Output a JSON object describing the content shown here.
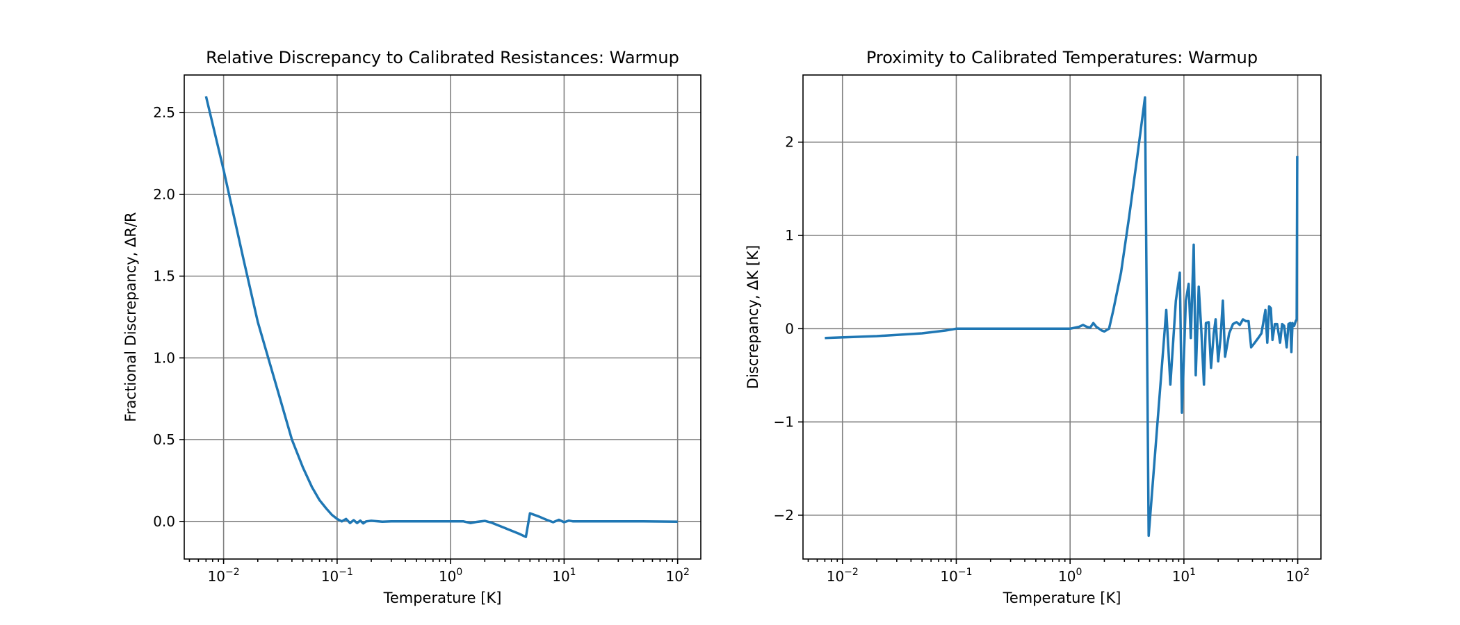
{
  "chart_data": [
    {
      "type": "line",
      "title": "Relative Discrepancy to Calibrated Resistances: Warmup",
      "xlabel": "Temperature [K]",
      "ylabel": "Fractional Discrepancy, ΔR/R",
      "xscale": "log",
      "xlim": [
        0.0045,
        160
      ],
      "ylim": [
        -0.23,
        2.73
      ],
      "xticks": [
        {
          "value": 0.01,
          "base": "10",
          "exp": "−2"
        },
        {
          "value": 0.1,
          "base": "10",
          "exp": "−1"
        },
        {
          "value": 1,
          "base": "10",
          "exp": "0"
        },
        {
          "value": 10,
          "base": "10",
          "exp": "1"
        },
        {
          "value": 100,
          "base": "10",
          "exp": "2"
        }
      ],
      "yticks": [
        {
          "value": 0.0,
          "label": "0.0"
        },
        {
          "value": 0.5,
          "label": "0.5"
        },
        {
          "value": 1.0,
          "label": "1.0"
        },
        {
          "value": 1.5,
          "label": "1.5"
        },
        {
          "value": 2.0,
          "label": "2.0"
        },
        {
          "value": 2.5,
          "label": "2.5"
        }
      ],
      "grid": true,
      "series": [
        {
          "color": "#1f77b4",
          "points": [
            [
              0.007,
              2.6
            ],
            [
              0.01,
              2.15
            ],
            [
              0.015,
              1.6
            ],
            [
              0.02,
              1.22
            ],
            [
              0.03,
              0.8
            ],
            [
              0.04,
              0.5
            ],
            [
              0.05,
              0.33
            ],
            [
              0.06,
              0.21
            ],
            [
              0.07,
              0.13
            ],
            [
              0.08,
              0.08
            ],
            [
              0.09,
              0.04
            ],
            [
              0.1,
              0.015
            ],
            [
              0.11,
              0.0
            ],
            [
              0.12,
              0.015
            ],
            [
              0.13,
              -0.01
            ],
            [
              0.14,
              0.008
            ],
            [
              0.15,
              -0.01
            ],
            [
              0.16,
              0.005
            ],
            [
              0.17,
              -0.012
            ],
            [
              0.18,
              0.0
            ],
            [
              0.2,
              0.004
            ],
            [
              0.25,
              -0.002
            ],
            [
              0.3,
              0.0
            ],
            [
              0.5,
              0.0
            ],
            [
              0.7,
              0.0
            ],
            [
              1.0,
              0.0
            ],
            [
              1.3,
              0.0
            ],
            [
              1.5,
              -0.01
            ],
            [
              1.7,
              -0.003
            ],
            [
              2.0,
              0.003
            ],
            [
              2.3,
              -0.008
            ],
            [
              3.0,
              -0.04
            ],
            [
              4.0,
              -0.075
            ],
            [
              4.6,
              -0.095
            ],
            [
              5.0,
              0.05
            ],
            [
              6.0,
              0.03
            ],
            [
              7.0,
              0.01
            ],
            [
              8.0,
              -0.005
            ],
            [
              9.0,
              0.01
            ],
            [
              10.0,
              -0.005
            ],
            [
              11.0,
              0.005
            ],
            [
              12.0,
              0.0
            ],
            [
              20.0,
              0.0
            ],
            [
              50.0,
              0.0
            ],
            [
              100.0,
              -0.002
            ]
          ]
        }
      ]
    },
    {
      "type": "line",
      "title": "Proximity to Calibrated Temperatures: Warmup",
      "xlabel": "Temperature [K]",
      "ylabel": "Discrepancy, ΔK [K]",
      "xscale": "log",
      "xlim": [
        0.0045,
        160
      ],
      "ylim": [
        -2.47,
        2.72
      ],
      "xticks": [
        {
          "value": 0.01,
          "base": "10",
          "exp": "−2"
        },
        {
          "value": 0.1,
          "base": "10",
          "exp": "−1"
        },
        {
          "value": 1,
          "base": "10",
          "exp": "0"
        },
        {
          "value": 10,
          "base": "10",
          "exp": "1"
        },
        {
          "value": 100,
          "base": "10",
          "exp": "2"
        }
      ],
      "yticks": [
        {
          "value": -2,
          "label": "−2"
        },
        {
          "value": -1,
          "label": "−1"
        },
        {
          "value": 0,
          "label": "0"
        },
        {
          "value": 1,
          "label": "1"
        },
        {
          "value": 2,
          "label": "2"
        }
      ],
      "grid": true,
      "series": [
        {
          "color": "#1f77b4",
          "points": [
            [
              0.007,
              -0.1
            ],
            [
              0.02,
              -0.08
            ],
            [
              0.05,
              -0.05
            ],
            [
              0.08,
              -0.02
            ],
            [
              0.1,
              0.0
            ],
            [
              0.15,
              0.0
            ],
            [
              0.3,
              0.0
            ],
            [
              0.7,
              0.0
            ],
            [
              1.0,
              0.0
            ],
            [
              1.2,
              0.02
            ],
            [
              1.3,
              0.04
            ],
            [
              1.4,
              0.02
            ],
            [
              1.5,
              0.01
            ],
            [
              1.6,
              0.06
            ],
            [
              1.7,
              0.02
            ],
            [
              1.8,
              0.0
            ],
            [
              1.9,
              -0.02
            ],
            [
              2.0,
              -0.03
            ],
            [
              2.2,
              0.0
            ],
            [
              2.4,
              0.2
            ],
            [
              2.8,
              0.6
            ],
            [
              3.3,
              1.2
            ],
            [
              3.9,
              1.85
            ],
            [
              4.55,
              2.48
            ],
            [
              4.9,
              -2.22
            ],
            [
              7.0,
              0.2
            ],
            [
              7.6,
              -0.6
            ],
            [
              8.5,
              0.3
            ],
            [
              9.2,
              0.6
            ],
            [
              9.6,
              -0.9
            ],
            [
              10.4,
              0.3
            ],
            [
              11.0,
              0.48
            ],
            [
              11.5,
              -0.1
            ],
            [
              12.2,
              0.9
            ],
            [
              12.7,
              -0.5
            ],
            [
              13.5,
              0.45
            ],
            [
              14.2,
              0.0
            ],
            [
              15.0,
              -0.6
            ],
            [
              15.6,
              0.06
            ],
            [
              16.5,
              0.07
            ],
            [
              17.3,
              -0.42
            ],
            [
              18.3,
              -0.05
            ],
            [
              19.0,
              0.1
            ],
            [
              20.0,
              -0.35
            ],
            [
              21.0,
              -0.1
            ],
            [
              22.0,
              0.3
            ],
            [
              23.0,
              -0.3
            ],
            [
              25.0,
              -0.05
            ],
            [
              27.0,
              0.05
            ],
            [
              29.0,
              0.07
            ],
            [
              31.0,
              0.04
            ],
            [
              33.0,
              0.1
            ],
            [
              35.0,
              0.08
            ],
            [
              37.0,
              0.08
            ],
            [
              39.0,
              -0.2
            ],
            [
              42.0,
              -0.15
            ],
            [
              45.0,
              -0.1
            ],
            [
              48.0,
              -0.05
            ],
            [
              52.0,
              0.2
            ],
            [
              54.0,
              -0.15
            ],
            [
              56.0,
              0.24
            ],
            [
              58.0,
              0.22
            ],
            [
              60.0,
              -0.12
            ],
            [
              63.0,
              0.05
            ],
            [
              66.0,
              0.05
            ],
            [
              70.0,
              -0.15
            ],
            [
              73.0,
              0.05
            ],
            [
              76.0,
              0.03
            ],
            [
              80.0,
              -0.2
            ],
            [
              83.0,
              0.05
            ],
            [
              86.0,
              0.06
            ],
            [
              88.0,
              -0.25
            ],
            [
              90.0,
              0.06
            ],
            [
              93.0,
              0.03
            ],
            [
              96.0,
              0.08
            ],
            [
              98.0,
              0.1
            ],
            [
              99.0,
              1.85
            ]
          ]
        }
      ]
    }
  ]
}
